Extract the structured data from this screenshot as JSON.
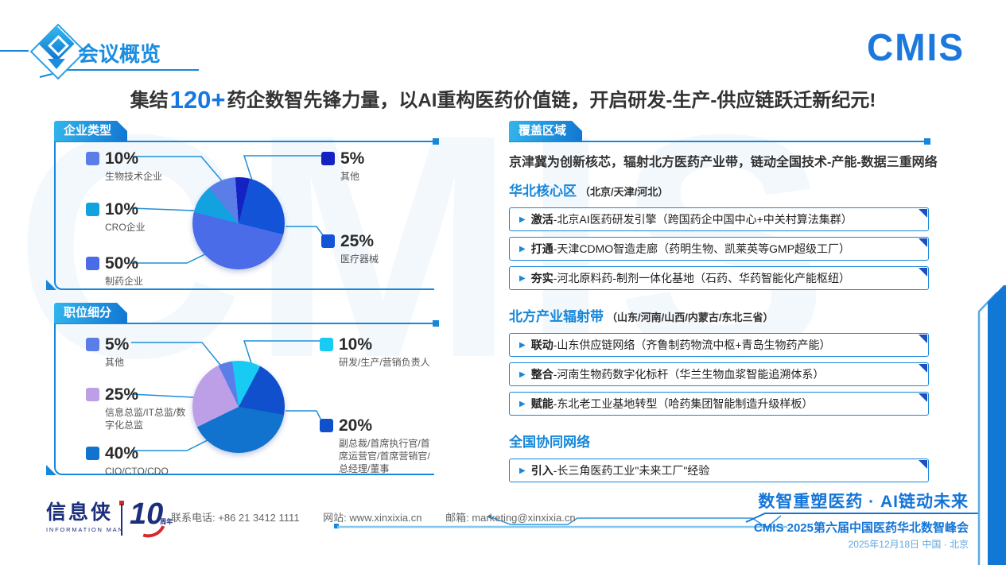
{
  "header": {
    "brand": "CMIS",
    "section_title": "会议概览"
  },
  "headline": {
    "prefix": "集结",
    "highlight": "120+",
    "suffix": "药企数智先锋力量，以AI重构医药价值链，开启研发-生产-供应链跃迁新纪元!"
  },
  "accent_colors": {
    "primary_blue": "#1687da",
    "deep_blue": "#1c4fc2",
    "brand_navy": "#1d2f7c",
    "brand_red": "#d8262c"
  },
  "chart_data": [
    {
      "type": "pie",
      "title": "企业类型",
      "start": -4,
      "slices": [
        {
          "label": "其他",
          "value": 5,
          "color": "#1322c0"
        },
        {
          "label": "医疗器械",
          "value": 25,
          "color": "#1253d8"
        },
        {
          "label": "制药企业",
          "value": 50,
          "color": "#4a6ce8"
        },
        {
          "label": "CRO企业",
          "value": 10,
          "color": "#12a2e0"
        },
        {
          "label": "生物技术企业",
          "value": 10,
          "color": "#5b7de8"
        }
      ]
    },
    {
      "type": "pie",
      "title": "职位细分",
      "start": -8,
      "slices": [
        {
          "label": "研发/生产/营销负责人",
          "value": 10,
          "color": "#18cbf2"
        },
        {
          "label": "副总裁/首席执行官/首席运营官/首席营销官/总经理/董事",
          "value": 20,
          "color": "#1150cc"
        },
        {
          "label": "CIO/CTO/CDO",
          "value": 40,
          "color": "#1173cd"
        },
        {
          "label": "信息总监/IT总监/数字化总监",
          "value": 25,
          "color": "#bd9fe8"
        },
        {
          "label": "其他",
          "value": 5,
          "color": "#5b7de8"
        }
      ]
    }
  ],
  "coverage": {
    "title": "覆盖区域",
    "intro": "京津冀为创新核芯，辐射北方医药产业带，链动全国技术-产能-数据三重网络",
    "groups": [
      {
        "name": "华北核心区",
        "regions": "（北京/天津/河北）",
        "items": [
          {
            "lead": "激活",
            "text": "-北京AI医药研发引擎（跨国药企中国中心+中关村算法集群）"
          },
          {
            "lead": "打通",
            "text": "-天津CDMO智造走廊（药明生物、凯莱英等GMP超级工厂）"
          },
          {
            "lead": "夯实",
            "text": "-河北原料药-制剂一体化基地（石药、华药智能化产能枢纽）"
          }
        ]
      },
      {
        "name": "北方产业辐射带",
        "regions": "（山东/河南/山西/内蒙古/东北三省）",
        "items": [
          {
            "lead": "联动",
            "text": "-山东供应链网络（齐鲁制药物流中枢+青岛生物药产能）"
          },
          {
            "lead": "整合",
            "text": "-河南生物药数字化标杆（华兰生物血浆智能追溯体系）"
          },
          {
            "lead": "赋能",
            "text": "-东北老工业基地转型（哈药集团智能制造升级样板）"
          }
        ]
      },
      {
        "name": "全国协同网络",
        "regions": "",
        "items": [
          {
            "lead": "引入",
            "text": "-长三角医药工业\"未来工厂\"经验"
          }
        ]
      }
    ]
  },
  "footer": {
    "logo_main": "信息侠",
    "logo_sub": "INFORMATION MAN",
    "anniversary": "10",
    "anniversary_sub": "周年",
    "phone_label": "联系电话:",
    "phone": "+86 21 3412 1111",
    "website_label": "网站:",
    "website": "www.xinxixia.cn",
    "email_label": "邮箱:",
    "email": "marketing@xinxixia.cn",
    "slogan": "数智重塑医药 · AI链动未来",
    "event": "CMIS 2025第六届中国医药华北数智峰会",
    "date": "2025年12月18日 中国 · 北京"
  }
}
